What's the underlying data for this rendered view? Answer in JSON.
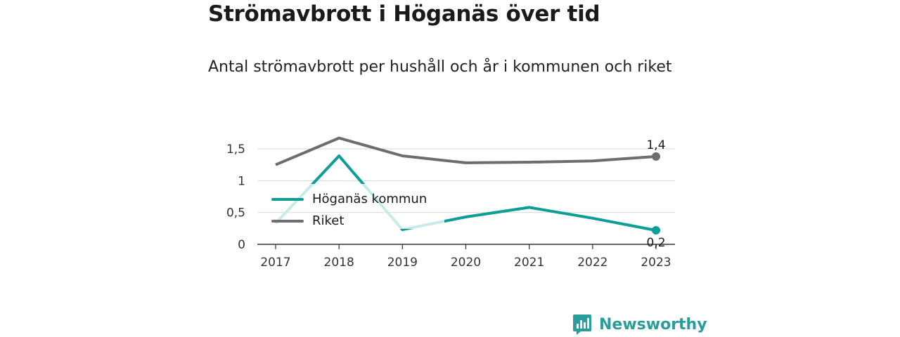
{
  "title": "Strömavbrott i Höganäs över tid",
  "subtitle": "Antal strömavbrott per hushåll och år i kommunen och riket",
  "brand": {
    "name": "Newsworthy",
    "color": "#2a9d9a",
    "icon": "newsworthy-logo-icon"
  },
  "chart_data": {
    "type": "line",
    "x": [
      "2017",
      "2018",
      "2019",
      "2020",
      "2021",
      "2022",
      "2023"
    ],
    "ylim": [
      0,
      1.7
    ],
    "yticks": [
      0,
      0.5,
      1,
      1.5
    ],
    "ytick_labels": [
      "0",
      "0,5",
      "1",
      "1,5"
    ],
    "grid": true,
    "legend_position": "left",
    "series": [
      {
        "name": "Höganäs kommun",
        "color": "#0e9e96",
        "faded_color": "#c8ebe8",
        "values": [
          0.33,
          1.39,
          0.23,
          0.43,
          0.58,
          0.41,
          0.22
        ],
        "end_label": "0,2"
      },
      {
        "name": "Riket",
        "color": "#6d6c72",
        "values": [
          1.25,
          1.67,
          1.39,
          1.28,
          1.29,
          1.31,
          1.38
        ],
        "end_label": "1,4"
      }
    ]
  }
}
